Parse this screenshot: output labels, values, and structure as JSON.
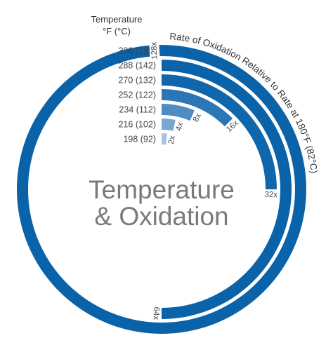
{
  "chart_data": {
    "type": "radial-bar",
    "title": "Temperature & Oxidation",
    "title_line1": "Temperature",
    "title_line2": "& Oxidation",
    "category_header": "Temperature",
    "category_unit": "°F (°C)",
    "value_label": "Rate of Oxidation Relative to Rate at 180°F (82°C)",
    "max_value": 128,
    "categories": [
      "306 (152)",
      "288 (142)",
      "270 (132)",
      "252 (122)",
      "234 (112)",
      "216 (102)",
      "198 (92)"
    ],
    "values": [
      128,
      64,
      32,
      16,
      8,
      4,
      2
    ],
    "value_labels": [
      "128x",
      "64x",
      "32x",
      "16x",
      "8x",
      "4x",
      "2x"
    ],
    "colors": [
      "#0a62a8",
      "#0a62a8",
      "#0f66ab",
      "#2a76b6",
      "#4f8cc4",
      "#7aa7d2",
      "#a6c2e1"
    ]
  }
}
